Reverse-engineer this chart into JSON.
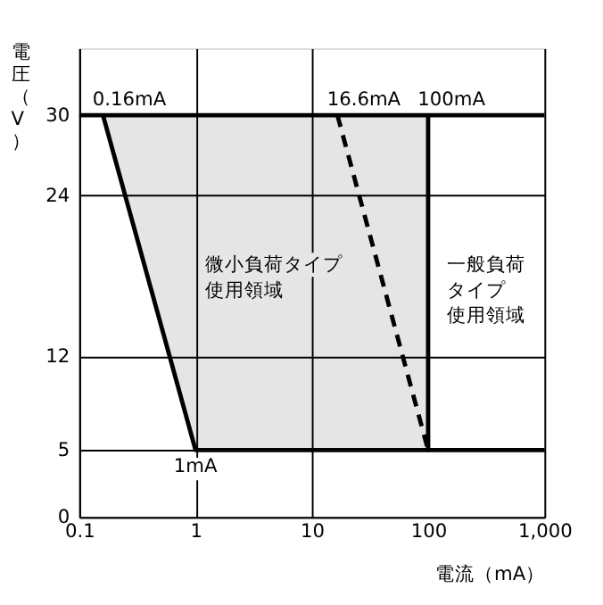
{
  "chart_data": {
    "type": "line",
    "xlabel": "電流（mA）",
    "ylabel": "電圧（V）",
    "xlim": [
      0.1,
      1000
    ],
    "xticks": [
      0.1,
      1,
      10,
      100,
      {
        "value": 1000,
        "label": "1,000"
      }
    ],
    "ylim": [
      0,
      35
    ],
    "yticks": [
      0,
      5,
      12,
      24,
      30
    ],
    "log": "x",
    "grid": true,
    "series": [
      {
        "type": "line",
        "color": "#000000",
        "x": [
          0.16,
          1,
          100,
          100
        ],
        "values": [
          30,
          5,
          5,
          30
        ],
        "lower": [
          30,
          5,
          5,
          30
        ],
        "upper": [
          30,
          30,
          30,
          30
        ],
        "line_style": "solid"
      },
      {
        "type": "line",
        "color": "#000000",
        "x": [
          100,
          1000
        ],
        "values": [
          5,
          5
        ],
        "line_style": "solid"
      },
      {
        "type": "line",
        "color": "#000000",
        "x": [
          16.6,
          100
        ],
        "values": [
          30,
          5
        ],
        "line_style": "dashed"
      }
    ],
    "ref_lines": [
      {
        "axis": "y",
        "value": 30,
        "color": "#000000",
        "line_style": "solid"
      }
    ],
    "annotations": [
      {
        "text": "0.16mA",
        "x": 0.16,
        "y": 30
      },
      {
        "text": "16.6mA",
        "x": 16.6,
        "y": 30
      },
      {
        "text": "100mA",
        "x": 100,
        "y": 30
      },
      {
        "text": "1mA",
        "x": 1,
        "y": 5
      },
      "微小負荷タイプ",
      "使用領域",
      "一般負荷",
      "タイプ",
      "使用領域"
    ]
  }
}
